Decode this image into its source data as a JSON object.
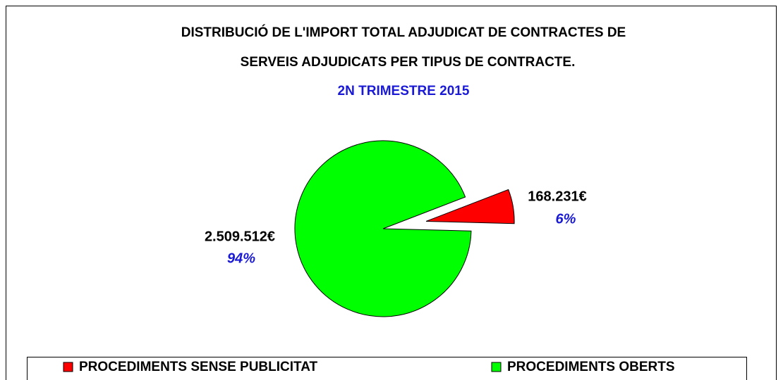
{
  "chart_data": {
    "type": "pie",
    "title": "DISTRIBUCIÓ DE L'IMPORT TOTAL ADJUDICAT DE CONTRACTES DE",
    "title_line2": "SERVEIS ADJUDICATS PER TIPUS DE CONTRACTE.",
    "subtitle": "2N TRIMESTRE 2015",
    "categories": [
      "PROCEDIMENTS SENSE PUBLICITAT",
      "PROCEDIMENTS OBERTS"
    ],
    "values": [
      168231,
      2509512
    ],
    "value_labels": [
      "168.231€",
      "2.509.512€"
    ],
    "percents": [
      6,
      94
    ],
    "percent_labels": [
      "6%",
      "94%"
    ],
    "colors": [
      "#ff0000",
      "#00ff00"
    ],
    "exploded": [
      true,
      false
    ]
  }
}
